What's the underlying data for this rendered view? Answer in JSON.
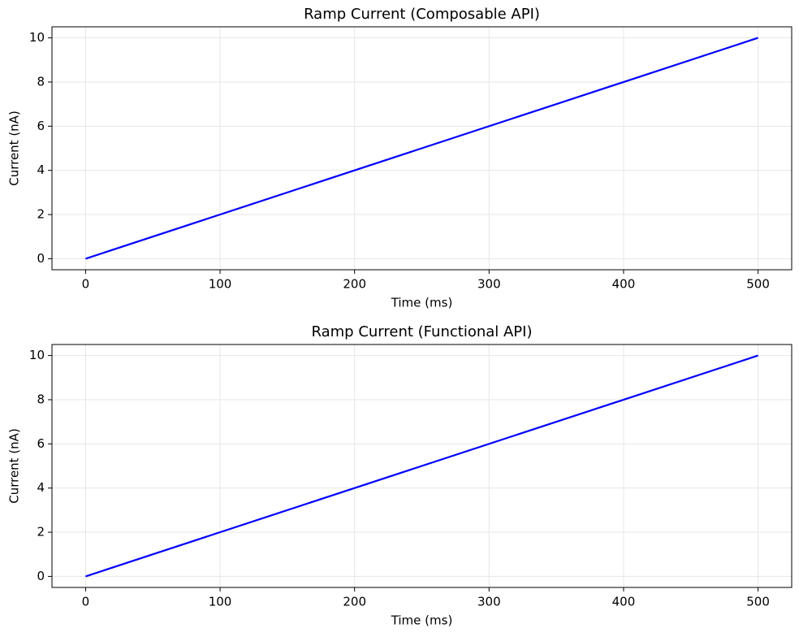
{
  "chart_data": [
    {
      "type": "line",
      "title": "Ramp Current (Composable API)",
      "x_label": "Time (ms)",
      "y_label": "Current (nA)",
      "x": [
        0,
        500
      ],
      "values": [
        0,
        10
      ],
      "color": "#0000ff",
      "xlim": [
        -25,
        525
      ],
      "xticks": [
        0,
        100,
        200,
        300,
        400,
        500
      ],
      "ylim": [
        -0.5,
        10.5
      ],
      "yticks": [
        0,
        2,
        4,
        6,
        8,
        10
      ],
      "grid": true
    },
    {
      "type": "line",
      "title": "Ramp Current (Functional API)",
      "x_label": "Time (ms)",
      "y_label": "Current (nA)",
      "x": [
        0,
        500
      ],
      "values": [
        0,
        10
      ],
      "color": "#0000ff",
      "xlim": [
        -25,
        525
      ],
      "xticks": [
        0,
        100,
        200,
        300,
        400,
        500
      ],
      "ylim": [
        -0.5,
        10.5
      ],
      "yticks": [
        0,
        2,
        4,
        6,
        8,
        10
      ],
      "grid": true
    }
  ]
}
